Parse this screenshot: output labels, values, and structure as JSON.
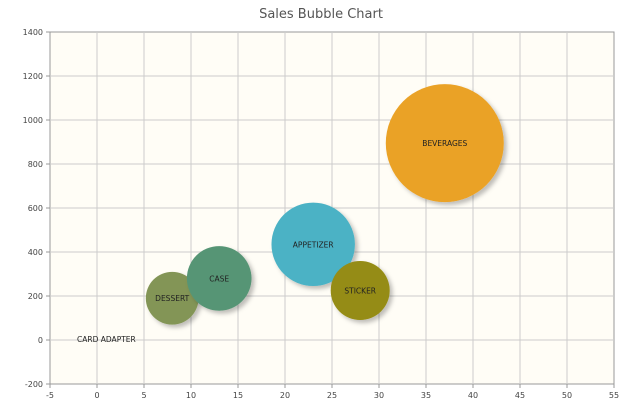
{
  "chart_data": {
    "type": "bubble",
    "title": "Sales Bubble Chart",
    "xlabel": "",
    "ylabel": "",
    "xlim": [
      -5,
      55
    ],
    "ylim": [
      -200,
      1400
    ],
    "xticks": [
      -5,
      0,
      5,
      10,
      15,
      20,
      25,
      30,
      35,
      40,
      45,
      50,
      55
    ],
    "yticks": [
      -200,
      0,
      200,
      400,
      600,
      800,
      1000,
      1200,
      1400
    ],
    "grid": true,
    "points": [
      {
        "label": "CARD ADAPTER",
        "x": 1,
        "y": 5,
        "size": 0,
        "color": "#eaa228"
      },
      {
        "label": "DESSERT",
        "x": 8,
        "y": 190,
        "size": 12,
        "color": "#839557"
      },
      {
        "label": "CASE",
        "x": 13,
        "y": 280,
        "size": 18,
        "color": "#579575"
      },
      {
        "label": "APPETIZER",
        "x": 23,
        "y": 435,
        "size": 30,
        "color": "#4bb2c5"
      },
      {
        "label": "STICKER",
        "x": 28,
        "y": 225,
        "size": 15,
        "color": "#958c12"
      },
      {
        "label": "BEVERAGES",
        "x": 37,
        "y": 895,
        "size": 60,
        "color": "#eaa228"
      }
    ]
  }
}
